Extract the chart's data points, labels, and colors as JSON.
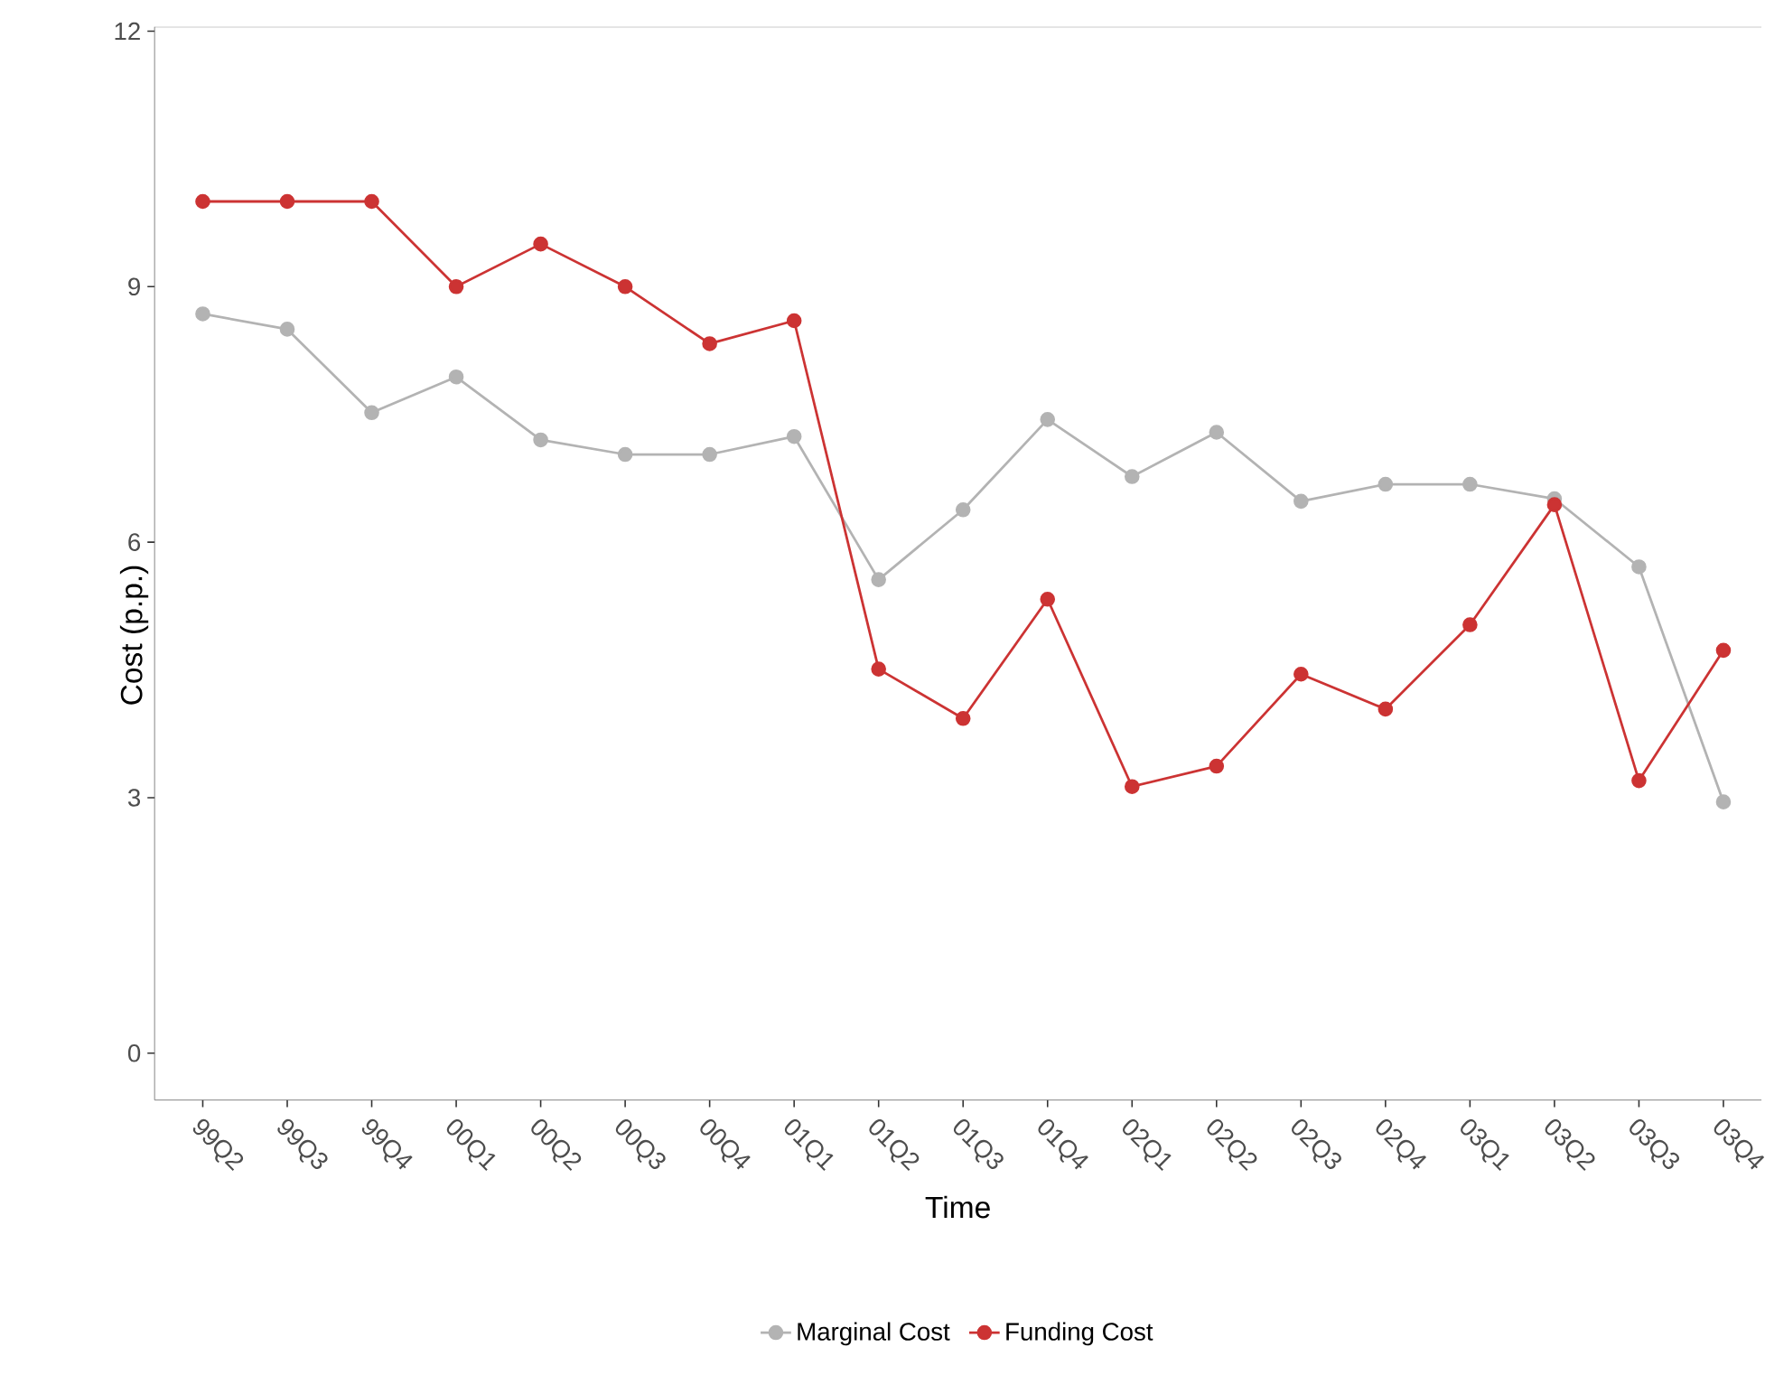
{
  "chart_data": {
    "type": "line",
    "xlabel": "Time",
    "ylabel": "Cost (p.p.)",
    "categories": [
      "99Q2",
      "99Q3",
      "99Q4",
      "00Q1",
      "00Q2",
      "00Q3",
      "00Q4",
      "01Q1",
      "01Q2",
      "01Q3",
      "01Q4",
      "02Q1",
      "02Q2",
      "02Q3",
      "02Q4",
      "03Q1",
      "03Q2",
      "03Q3",
      "03Q4"
    ],
    "series": [
      {
        "name": "Marginal Cost",
        "color": "#b3b3b3",
        "values": [
          8.68,
          8.5,
          7.52,
          7.94,
          7.2,
          7.03,
          7.03,
          7.24,
          5.56,
          6.38,
          7.44,
          6.77,
          7.29,
          6.48,
          6.68,
          6.68,
          6.51,
          5.71,
          2.95
        ]
      },
      {
        "name": "Funding Cost",
        "color": "#cc3333",
        "values": [
          10,
          10,
          10,
          9,
          9.5,
          9,
          8.33,
          8.6,
          4.51,
          3.93,
          5.33,
          3.13,
          3.37,
          4.45,
          4.04,
          5.03,
          6.44,
          3.2,
          4.73
        ]
      }
    ],
    "ylim": [
      -0.55,
      12.05
    ],
    "yticks": [
      0,
      3,
      6,
      9,
      12
    ],
    "grid": false,
    "legend": "bottom",
    "marker": "circle",
    "line_style": "solid"
  }
}
